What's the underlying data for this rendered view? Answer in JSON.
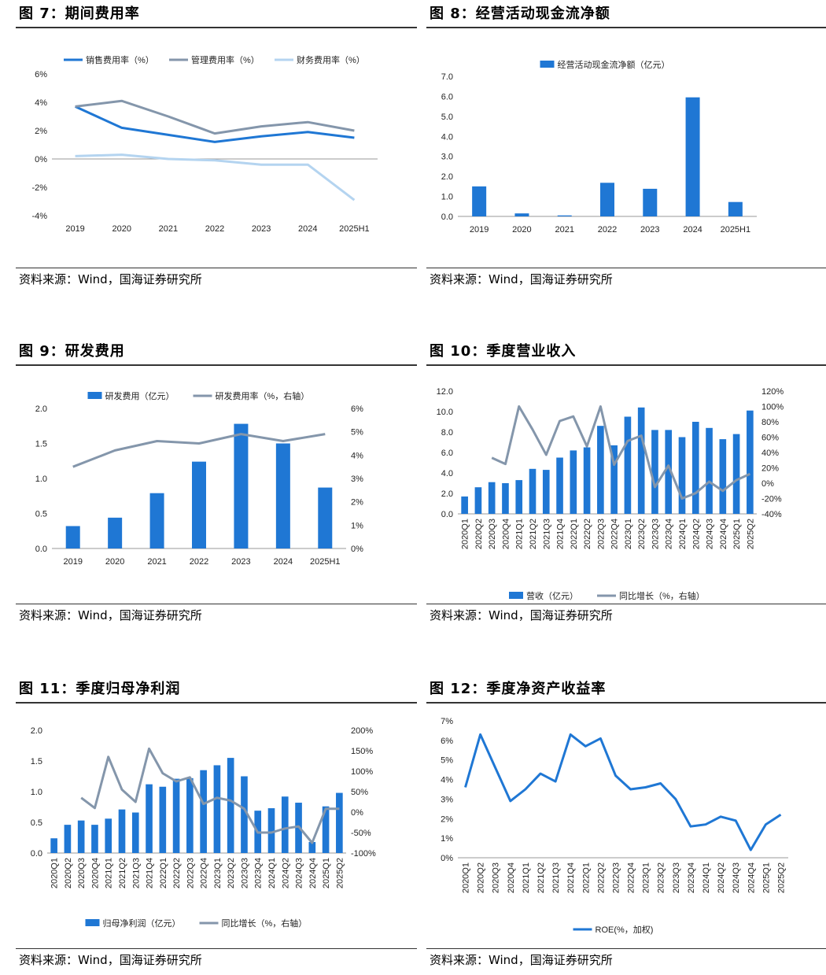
{
  "source_text": "资料来源：Wind，国海证券研究所",
  "colors": {
    "blue": "#1f77d4",
    "gray": "#8496ab",
    "lightblue": "#b4d4f0"
  },
  "charts": [
    {
      "title": "图 7：期间费用率",
      "chart_data": {
        "type": "line",
        "categories": [
          "2019",
          "2020",
          "2021",
          "2022",
          "2023",
          "2024",
          "2025H1"
        ],
        "ylim": [
          -4,
          6
        ],
        "yticks": [
          -4,
          -2,
          0,
          2,
          4,
          6
        ],
        "yfmt": "pct",
        "legend_position": "top",
        "series": [
          {
            "name": "销售费用率（%）",
            "color": "#1f77d4",
            "values": [
              3.7,
              2.2,
              1.7,
              1.2,
              1.6,
              1.9,
              1.5
            ]
          },
          {
            "name": "管理费用率（%）",
            "color": "#8496ab",
            "values": [
              3.7,
              4.1,
              3.0,
              1.8,
              2.3,
              2.6,
              2.0
            ]
          },
          {
            "name": "财务费用率（%）",
            "color": "#b4d4f0",
            "values": [
              0.2,
              0.3,
              0.0,
              -0.1,
              -0.4,
              -0.4,
              -2.9
            ]
          }
        ]
      }
    },
    {
      "title": "图 8：经营活动现金流净额",
      "chart_data": {
        "type": "bar",
        "categories": [
          "2019",
          "2020",
          "2021",
          "2022",
          "2023",
          "2024",
          "2025H1"
        ],
        "ylim": [
          0,
          7
        ],
        "yticks": [
          0,
          1,
          2,
          3,
          4,
          5,
          6,
          7
        ],
        "yfmt": "1",
        "legend_position": "top",
        "series": [
          {
            "name": "经营活动现金流净额（亿元）",
            "color": "#1f77d4",
            "values": [
              1.5,
              0.15,
              0.05,
              1.68,
              1.38,
              5.95,
              0.72
            ]
          }
        ]
      }
    },
    {
      "title": "图 9：研发费用",
      "chart_data": {
        "type": "bar",
        "categories": [
          "2019",
          "2020",
          "2021",
          "2022",
          "2023",
          "2024",
          "2025H1"
        ],
        "ylim": [
          0,
          2
        ],
        "yticks": [
          0,
          0.5,
          1,
          1.5,
          2
        ],
        "yfmt": "1",
        "y2lim": [
          0,
          6
        ],
        "y2ticks": [
          0,
          1,
          2,
          3,
          4,
          5,
          6
        ],
        "y2fmt": "pct",
        "legend_position": "top",
        "series": [
          {
            "name": "研发费用（亿元）",
            "kind": "bar",
            "color": "#1f77d4",
            "values": [
              0.32,
              0.44,
              0.79,
              1.24,
              1.78,
              1.5,
              0.87
            ]
          },
          {
            "name": "研发费用率（%，右轴）",
            "kind": "line",
            "axis": "right",
            "color": "#8496ab",
            "values": [
              3.5,
              4.2,
              4.6,
              4.5,
              4.9,
              4.6,
              4.9
            ]
          }
        ]
      }
    },
    {
      "title": "图 10：季度营业收入",
      "chart_data": {
        "type": "bar",
        "categories": [
          "2020Q1",
          "2020Q2",
          "2020Q3",
          "2020Q4",
          "2021Q1",
          "2021Q2",
          "2021Q3",
          "2021Q4",
          "2022Q1",
          "2022Q2",
          "2022Q3",
          "2022Q4",
          "2023Q1",
          "2023Q2",
          "2023Q3",
          "2023Q4",
          "2024Q1",
          "2024Q2",
          "2024Q3",
          "2024Q4",
          "2025Q1",
          "2025Q2"
        ],
        "ylim": [
          0,
          12
        ],
        "yticks": [
          0,
          2,
          4,
          6,
          8,
          10,
          12
        ],
        "yfmt": "1",
        "y2lim": [
          -40,
          120
        ],
        "y2ticks": [
          -40,
          -20,
          0,
          20,
          40,
          60,
          80,
          100,
          120
        ],
        "y2fmt": "pct",
        "legend_position": "bottom",
        "series": [
          {
            "name": "营收（亿元）",
            "kind": "bar",
            "color": "#1f77d4",
            "values": [
              1.7,
              2.6,
              3.1,
              3.0,
              3.3,
              4.4,
              4.3,
              5.5,
              6.2,
              6.5,
              8.6,
              6.7,
              9.5,
              10.4,
              8.2,
              8.2,
              7.5,
              9.0,
              8.4,
              7.3,
              7.8,
              10.1
            ]
          },
          {
            "name": "同比增长（%，右轴）",
            "kind": "line",
            "axis": "right",
            "color": "#8496ab",
            "values": [
              null,
              null,
              33,
              25,
              100,
              70,
              37,
              81,
              87,
              48,
              100,
              24,
              55,
              62,
              -5,
              23,
              -20,
              -13,
              2,
              -10,
              4,
              12
            ]
          }
        ]
      }
    },
    {
      "title": "图 11：季度归母净利润",
      "chart_data": {
        "type": "bar",
        "categories": [
          "2020Q1",
          "2020Q2",
          "2020Q3",
          "2020Q4",
          "2021Q1",
          "2021Q2",
          "2021Q3",
          "2021Q4",
          "2022Q1",
          "2022Q2",
          "2022Q3",
          "2022Q4",
          "2023Q1",
          "2023Q2",
          "2023Q3",
          "2023Q4",
          "2024Q1",
          "2024Q2",
          "2024Q3",
          "2024Q4",
          "2025Q1",
          "2025Q2"
        ],
        "ylim": [
          0,
          2
        ],
        "yticks": [
          0,
          0.5,
          1,
          1.5,
          2
        ],
        "yfmt": "1",
        "y2lim": [
          -100,
          200
        ],
        "y2ticks": [
          -100,
          -50,
          0,
          50,
          100,
          150,
          200
        ],
        "y2fmt": "pct",
        "legend_position": "bottom",
        "series": [
          {
            "name": "归母净利润（亿元）",
            "kind": "bar",
            "color": "#1f77d4",
            "values": [
              0.24,
              0.46,
              0.53,
              0.46,
              0.56,
              0.71,
              0.66,
              1.12,
              1.08,
              1.21,
              1.22,
              1.35,
              1.43,
              1.55,
              1.25,
              0.69,
              0.73,
              0.92,
              0.82,
              0.18,
              0.76,
              0.98
            ]
          },
          {
            "name": "同比增长（%，右轴）",
            "kind": "line",
            "axis": "right",
            "color": "#8496ab",
            "values": [
              null,
              null,
              35,
              10,
              135,
              55,
              25,
              155,
              95,
              75,
              85,
              20,
              35,
              28,
              8,
              -50,
              -50,
              -40,
              -35,
              -75,
              8,
              8
            ]
          }
        ]
      }
    },
    {
      "title": "图 12：季度净资产收益率",
      "chart_data": {
        "type": "line",
        "categories": [
          "2020Q1",
          "2020Q2",
          "2020Q3",
          "2020Q4",
          "2021Q1",
          "2021Q2",
          "2021Q3",
          "2021Q4",
          "2022Q1",
          "2022Q2",
          "2022Q3",
          "2022Q4",
          "2023Q1",
          "2023Q2",
          "2023Q3",
          "2023Q4",
          "2024Q1",
          "2024Q2",
          "2024Q3",
          "2024Q4",
          "2025Q1",
          "2025Q2"
        ],
        "ylim": [
          0,
          7
        ],
        "yticks": [
          0,
          1,
          2,
          3,
          4,
          5,
          6,
          7
        ],
        "yfmt": "pct",
        "legend_position": "bottom",
        "series": [
          {
            "name": "ROE(%，加权)",
            "color": "#1f77d4",
            "values": [
              3.6,
              6.3,
              4.6,
              2.9,
              3.5,
              4.3,
              3.9,
              6.3,
              5.7,
              6.1,
              4.2,
              3.5,
              3.6,
              3.8,
              3.0,
              1.6,
              1.7,
              2.1,
              1.9,
              0.4,
              1.7,
              2.2
            ]
          }
        ]
      }
    }
  ]
}
